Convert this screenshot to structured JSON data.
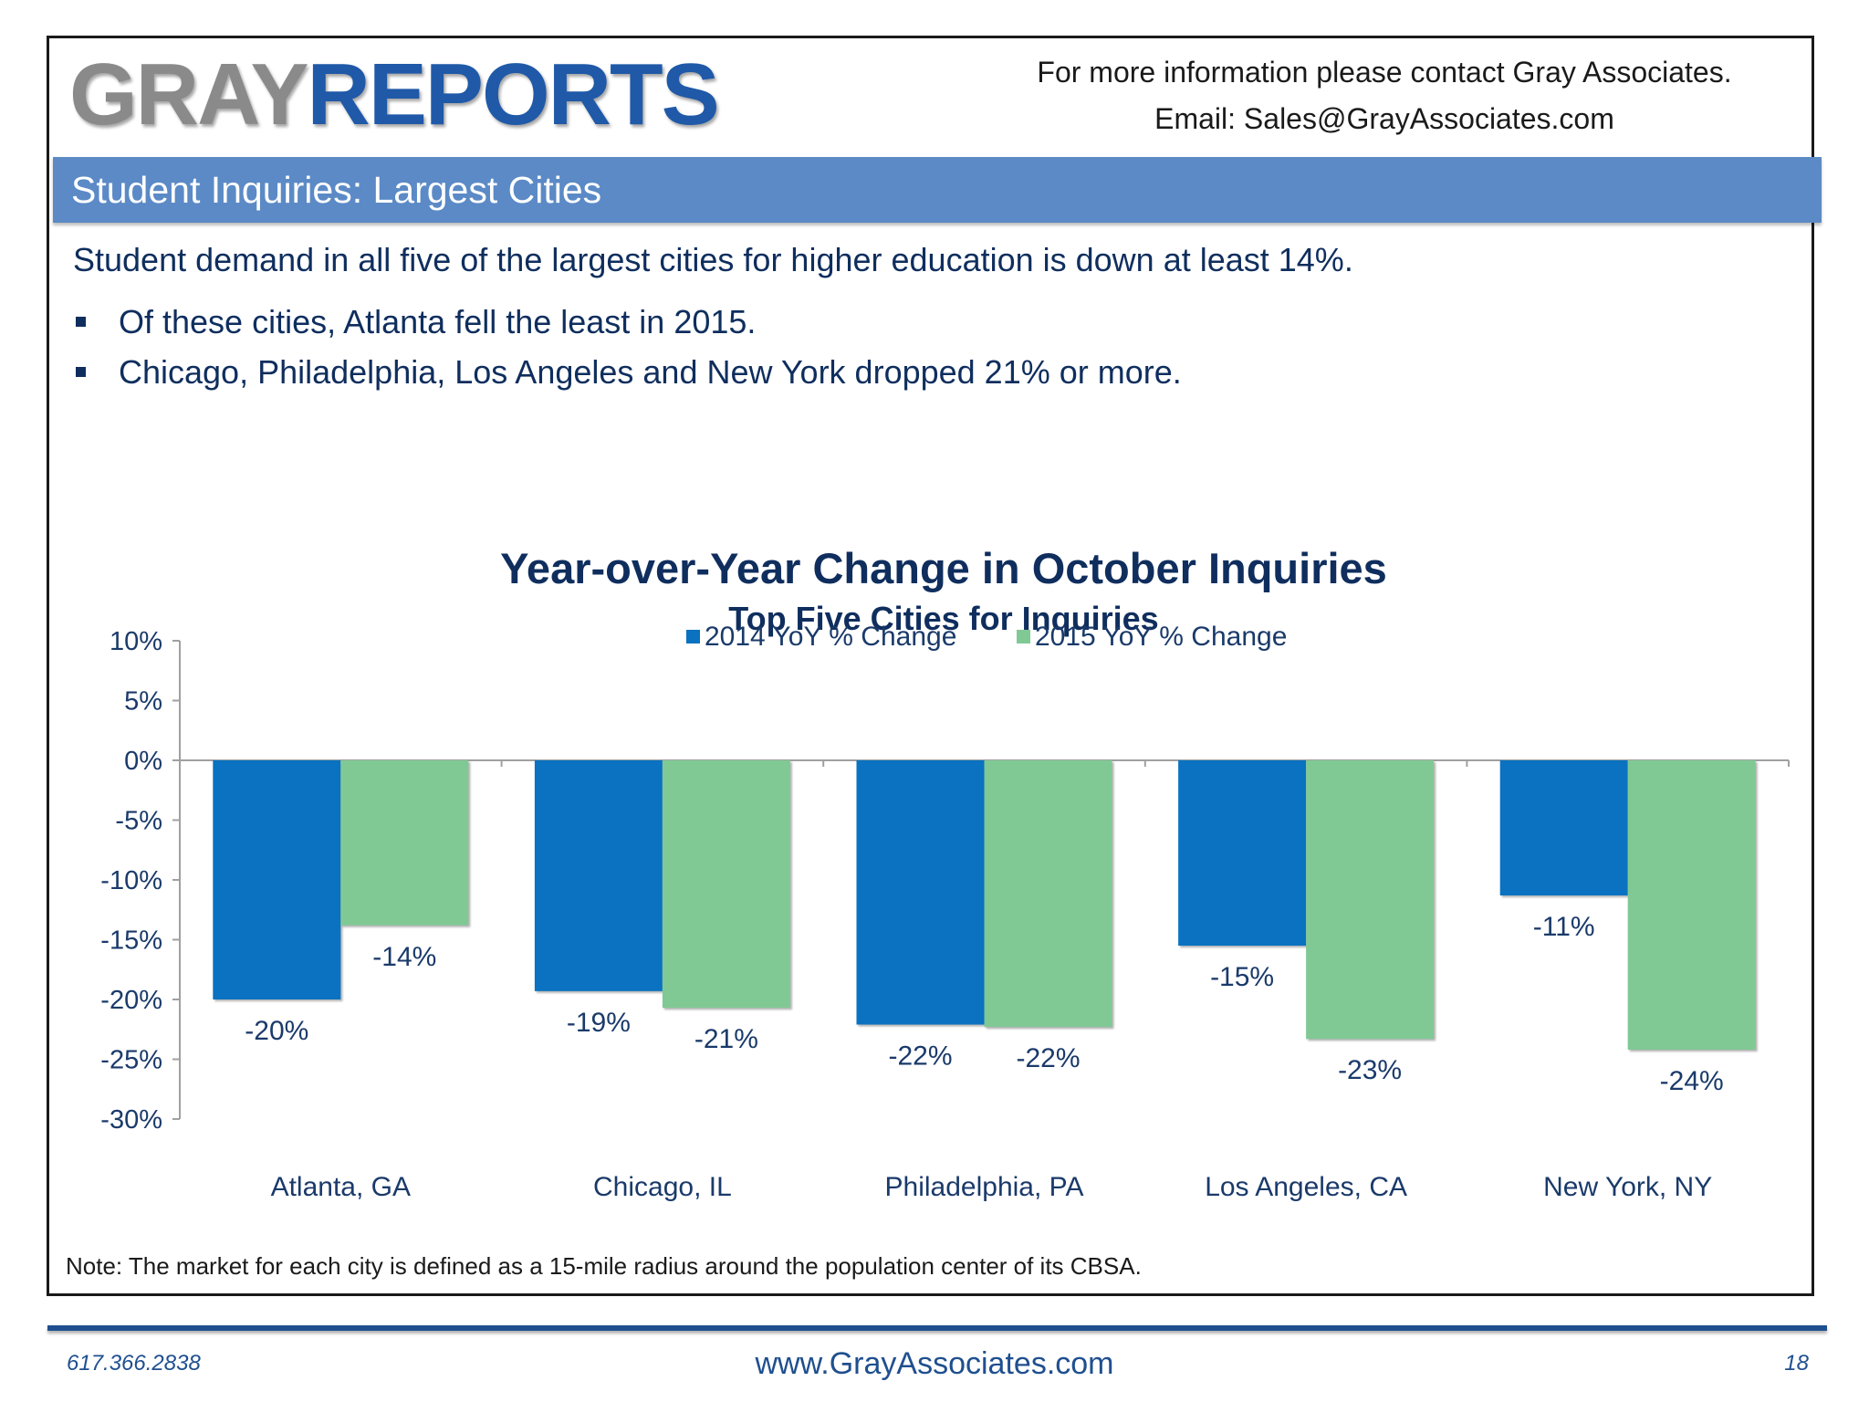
{
  "header": {
    "logo_part1": "GRAY",
    "logo_part2": "REPORTS",
    "contact_line1": "For more information please contact Gray Associates.",
    "contact_line2": "Email:  Sales@GrayAssociates.com"
  },
  "banner": {
    "title": "Student Inquiries:  Largest Cities"
  },
  "summary": {
    "intro": "Student demand in all five of the largest cities for higher education is down at least 14%.",
    "bullets": [
      "Of these cities, Atlanta fell the least in 2015.",
      "Chicago, Philadelphia, Los Angeles and New York dropped 21% or more."
    ]
  },
  "chart_data": {
    "type": "bar",
    "title": "Year-over-Year Change in October Inquiries",
    "subtitle": "Top Five Cities for Inquiries",
    "categories": [
      "Atlanta, GA",
      "Chicago, IL",
      "Philadelphia, PA",
      "Los Angeles, CA",
      "New York, NY"
    ],
    "series": [
      {
        "name": "2014 YoY % Change",
        "color": "#0a72c0",
        "values": [
          -20,
          -19.3,
          -22.1,
          -15.5,
          -11.3
        ],
        "labels": [
          "-20%",
          "-19%",
          "-22%",
          "-15%",
          "-11%"
        ]
      },
      {
        "name": "2015 YoY % Change",
        "color": "#80c995",
        "values": [
          -13.8,
          -20.7,
          -22.3,
          -23.3,
          -24.2
        ],
        "labels": [
          "-14%",
          "-21%",
          "-22%",
          "-23%",
          "-24%"
        ]
      }
    ],
    "ylim": [
      -30,
      10
    ],
    "yticks": [
      10,
      5,
      0,
      -5,
      -10,
      -15,
      -20,
      -25,
      -30
    ],
    "ytick_labels": [
      "10%",
      "5%",
      "0%",
      "-5%",
      "-10%",
      "-15%",
      "-20%",
      "-25%",
      "-30%"
    ],
    "legend_position": "top",
    "grid": false
  },
  "footnote": "Note:  The market for each city is defined as a 15-mile radius around the population center of its CBSA.",
  "footer": {
    "phone": "617.366.2838",
    "url": "www.GrayAssociates.com",
    "page": "18"
  }
}
